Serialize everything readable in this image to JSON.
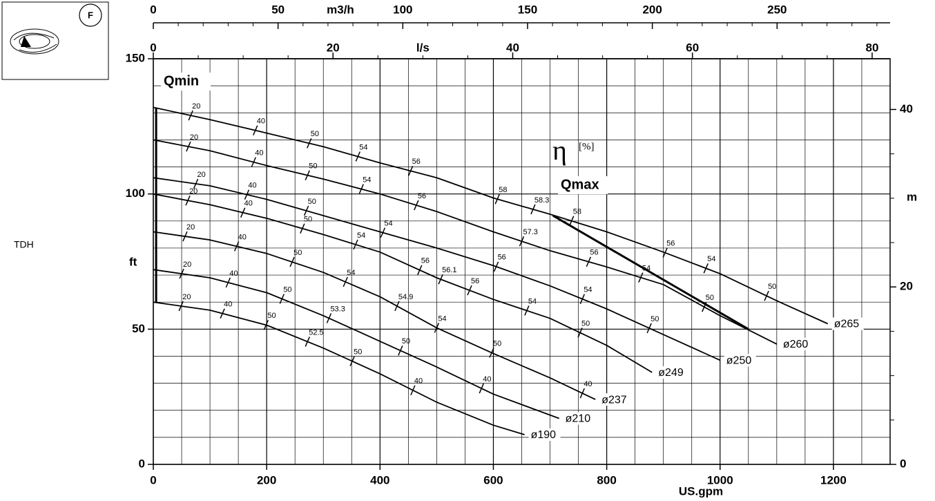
{
  "chart_data": {
    "type": "line",
    "icon_label": "F",
    "xlabel": "US.gpm",
    "ylabel": "ft",
    "y2label": "m",
    "side_label": "TDH",
    "efficiency_symbol": "η",
    "efficiency_unit": "[%]",
    "xlim": [
      0,
      1300
    ],
    "xticks": [
      0,
      200,
      400,
      600,
      800,
      1000,
      1200
    ],
    "xminor": [
      50,
      100,
      150,
      250,
      300,
      350,
      450,
      500,
      550,
      650,
      700,
      750,
      850,
      900,
      950,
      1050,
      1100,
      1150,
      1250
    ],
    "ylim": [
      0,
      150
    ],
    "yticks": [
      0,
      50,
      100,
      150
    ],
    "yminor": [
      10,
      20,
      30,
      40,
      60,
      70,
      80,
      90,
      110,
      120,
      130,
      140
    ],
    "y2lim": [
      0,
      45.72
    ],
    "y2ticks": [
      0,
      20,
      40
    ],
    "y2minor": [
      5,
      10,
      15,
      25,
      30,
      35
    ],
    "grid": true,
    "top_axes": [
      {
        "label": "m3/h",
        "lim": [
          0,
          295.3
        ],
        "ticks": [
          0,
          50,
          100,
          150,
          200,
          250
        ],
        "minor": [
          10,
          20,
          30,
          40,
          60,
          70,
          80,
          90,
          110,
          120,
          130,
          140,
          160,
          170,
          180,
          190,
          210,
          220,
          230,
          240,
          260,
          270,
          280,
          290
        ]
      },
      {
        "label": "l/s",
        "lim": [
          0,
          82.0
        ],
        "ticks": [
          0,
          20,
          40,
          60,
          80
        ],
        "minor": [
          5,
          10,
          15,
          25,
          30,
          35,
          45,
          50,
          55,
          65,
          70,
          75
        ]
      }
    ],
    "qmin": {
      "label": "Qmin",
      "x": [
        5,
        5
      ],
      "y": [
        60,
        132
      ]
    },
    "qmax": {
      "label": "Qmax",
      "x": [
        705,
        1050
      ],
      "y": [
        92,
        50
      ]
    },
    "series": [
      {
        "name": "ø265",
        "color": "#000000",
        "x": [
          0,
          100,
          200,
          300,
          400,
          500,
          600,
          700,
          800,
          900,
          1000,
          1100,
          1190
        ],
        "values": [
          132,
          127.5,
          122.5,
          117.5,
          111.5,
          106,
          98.5,
          92.5,
          86,
          78.5,
          70.5,
          60.5,
          52
        ],
        "efficiency": [
          {
            "x": 66,
            "value": 20
          },
          {
            "x": 180,
            "value": 40
          },
          {
            "x": 275,
            "value": 50
          },
          {
            "x": 361,
            "value": 54
          },
          {
            "x": 454,
            "value": 56
          },
          {
            "x": 607,
            "value": 58
          },
          {
            "x": 670,
            "value": 58.3
          },
          {
            "x": 738,
            "value": 58
          },
          {
            "x": 903,
            "value": 56
          },
          {
            "x": 975,
            "value": 54
          },
          {
            "x": 1082,
            "value": 50
          }
        ]
      },
      {
        "name": "ø260",
        "color": "#000000",
        "x": [
          0,
          100,
          200,
          300,
          400,
          500,
          600,
          700,
          800,
          900,
          1000,
          1100
        ],
        "values": [
          120,
          116,
          110.5,
          105.5,
          100,
          93.5,
          86,
          79,
          73,
          66.5,
          55,
          44.5
        ],
        "efficiency": [
          {
            "x": 62,
            "value": 20
          },
          {
            "x": 177,
            "value": 40
          },
          {
            "x": 272,
            "value": 50
          },
          {
            "x": 367,
            "value": 54
          },
          {
            "x": 464,
            "value": 56
          },
          {
            "x": 650,
            "value": 57.3
          },
          {
            "x": 768,
            "value": 56
          },
          {
            "x": 860,
            "value": 54
          },
          {
            "x": 972,
            "value": 50
          }
        ]
      },
      {
        "name": "ø250",
        "color": "#000000",
        "x": [
          0,
          100,
          200,
          300,
          400,
          500,
          600,
          700,
          800,
          900,
          1000
        ],
        "values": [
          106,
          103,
          98,
          92,
          86,
          80,
          73.5,
          66,
          57.5,
          48,
          38.5
        ],
        "efficiency": [
          {
            "x": 75,
            "value": 20
          },
          {
            "x": 165,
            "value": 40
          },
          {
            "x": 270,
            "value": 50
          },
          {
            "x": 405,
            "value": 54
          },
          {
            "x": 605,
            "value": 56
          },
          {
            "x": 757,
            "value": 54
          },
          {
            "x": 875,
            "value": 50
          }
        ]
      },
      {
        "name": "ø249",
        "color": "#000000",
        "x": [
          0,
          100,
          200,
          300,
          400,
          500,
          600,
          700,
          800,
          880
        ],
        "values": [
          100,
          96,
          91,
          85,
          78.5,
          69,
          61,
          54,
          44,
          34
        ],
        "efficiency": [
          {
            "x": 61,
            "value": 20
          },
          {
            "x": 158,
            "value": 40
          },
          {
            "x": 263,
            "value": 50
          },
          {
            "x": 357,
            "value": 54
          },
          {
            "x": 470,
            "value": 56
          },
          {
            "x": 507,
            "value": 56.1
          },
          {
            "x": 558,
            "value": 56
          },
          {
            "x": 659,
            "value": 54
          },
          {
            "x": 753,
            "value": 50
          }
        ]
      },
      {
        "name": "ø237",
        "color": "#000000",
        "x": [
          0,
          100,
          200,
          300,
          400,
          500,
          600,
          700,
          780
        ],
        "values": [
          86,
          83,
          78,
          71,
          62,
          50.5,
          41,
          32,
          24
        ],
        "efficiency": [
          {
            "x": 56,
            "value": 20
          },
          {
            "x": 147,
            "value": 40
          },
          {
            "x": 245,
            "value": 50
          },
          {
            "x": 339,
            "value": 54
          },
          {
            "x": 430,
            "value": 54.9
          },
          {
            "x": 500,
            "value": 54
          },
          {
            "x": 597,
            "value": 50
          },
          {
            "x": 757,
            "value": 40
          }
        ]
      },
      {
        "name": "ø210",
        "color": "#000000",
        "x": [
          0,
          100,
          200,
          300,
          400,
          500,
          600,
          716
        ],
        "values": [
          72,
          69,
          63.5,
          55,
          45.5,
          36,
          26,
          17
        ],
        "efficiency": [
          {
            "x": 50,
            "value": 20
          },
          {
            "x": 132,
            "value": 40
          },
          {
            "x": 227,
            "value": 50
          },
          {
            "x": 310,
            "value": 53.3
          },
          {
            "x": 436,
            "value": 50
          },
          {
            "x": 579,
            "value": 40
          }
        ]
      },
      {
        "name": "ø190",
        "color": "#000000",
        "x": [
          0,
          100,
          200,
          300,
          400,
          500,
          600,
          655
        ],
        "values": [
          60,
          57,
          51.5,
          43,
          33.5,
          23,
          14.5,
          11
        ],
        "efficiency": [
          {
            "x": 49,
            "value": 20
          },
          {
            "x": 122,
            "value": 40
          },
          {
            "x": 199,
            "value": 50
          },
          {
            "x": 272,
            "value": 52.5
          },
          {
            "x": 351,
            "value": 50
          },
          {
            "x": 458,
            "value": 40
          }
        ]
      }
    ]
  }
}
